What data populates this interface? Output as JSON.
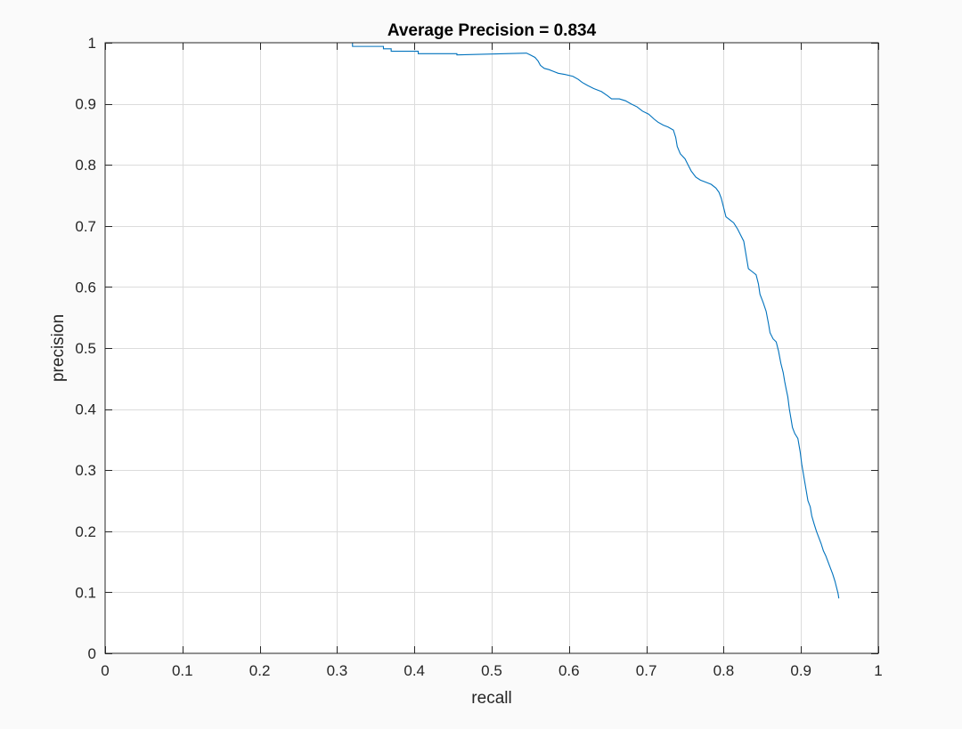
{
  "chart_data": {
    "type": "line",
    "title": "Average Precision = 0.834",
    "xlabel": "recall",
    "ylabel": "precision",
    "xlim": [
      0,
      1
    ],
    "ylim": [
      0,
      1
    ],
    "xticks": [
      "0",
      "0.1",
      "0.2",
      "0.3",
      "0.4",
      "0.5",
      "0.6",
      "0.7",
      "0.8",
      "0.9",
      "1"
    ],
    "yticks": [
      "0",
      "0.1",
      "0.2",
      "0.3",
      "0.4",
      "0.5",
      "0.6",
      "0.7",
      "0.8",
      "0.9",
      "1"
    ],
    "grid": true,
    "line_color": "#0072bd",
    "series": [
      {
        "points": [
          [
            0.0,
            1.0
          ],
          [
            0.32,
            1.0
          ],
          [
            0.32,
            0.994
          ],
          [
            0.36,
            0.994
          ],
          [
            0.36,
            0.99
          ],
          [
            0.37,
            0.99
          ],
          [
            0.37,
            0.986
          ],
          [
            0.405,
            0.986
          ],
          [
            0.405,
            0.982
          ],
          [
            0.455,
            0.982
          ],
          [
            0.455,
            0.98
          ],
          [
            0.545,
            0.983
          ],
          [
            0.55,
            0.98
          ],
          [
            0.556,
            0.976
          ],
          [
            0.56,
            0.97
          ],
          [
            0.563,
            0.963
          ],
          [
            0.568,
            0.958
          ],
          [
            0.574,
            0.956
          ],
          [
            0.58,
            0.953
          ],
          [
            0.586,
            0.95
          ],
          [
            0.595,
            0.948
          ],
          [
            0.605,
            0.945
          ],
          [
            0.612,
            0.94
          ],
          [
            0.617,
            0.935
          ],
          [
            0.624,
            0.93
          ],
          [
            0.632,
            0.925
          ],
          [
            0.642,
            0.92
          ],
          [
            0.65,
            0.913
          ],
          [
            0.655,
            0.908
          ],
          [
            0.665,
            0.908
          ],
          [
            0.673,
            0.905
          ],
          [
            0.68,
            0.9
          ],
          [
            0.688,
            0.895
          ],
          [
            0.695,
            0.888
          ],
          [
            0.703,
            0.883
          ],
          [
            0.71,
            0.875
          ],
          [
            0.715,
            0.87
          ],
          [
            0.722,
            0.865
          ],
          [
            0.728,
            0.862
          ],
          [
            0.735,
            0.857
          ],
          [
            0.738,
            0.845
          ],
          [
            0.74,
            0.83
          ],
          [
            0.744,
            0.818
          ],
          [
            0.75,
            0.81
          ],
          [
            0.754,
            0.8
          ],
          [
            0.758,
            0.79
          ],
          [
            0.764,
            0.78
          ],
          [
            0.77,
            0.775
          ],
          [
            0.776,
            0.772
          ],
          [
            0.784,
            0.768
          ],
          [
            0.79,
            0.762
          ],
          [
            0.794,
            0.755
          ],
          [
            0.797,
            0.745
          ],
          [
            0.8,
            0.73
          ],
          [
            0.803,
            0.715
          ],
          [
            0.808,
            0.71
          ],
          [
            0.813,
            0.705
          ],
          [
            0.818,
            0.695
          ],
          [
            0.822,
            0.685
          ],
          [
            0.826,
            0.675
          ],
          [
            0.828,
            0.66
          ],
          [
            0.83,
            0.645
          ],
          [
            0.832,
            0.63
          ],
          [
            0.837,
            0.625
          ],
          [
            0.842,
            0.62
          ],
          [
            0.845,
            0.605
          ],
          [
            0.847,
            0.588
          ],
          [
            0.851,
            0.575
          ],
          [
            0.855,
            0.56
          ],
          [
            0.858,
            0.54
          ],
          [
            0.86,
            0.525
          ],
          [
            0.864,
            0.515
          ],
          [
            0.868,
            0.51
          ],
          [
            0.871,
            0.495
          ],
          [
            0.874,
            0.475
          ],
          [
            0.877,
            0.46
          ],
          [
            0.879,
            0.445
          ],
          [
            0.881,
            0.432
          ],
          [
            0.883,
            0.42
          ],
          [
            0.885,
            0.4
          ],
          [
            0.887,
            0.385
          ],
          [
            0.889,
            0.37
          ],
          [
            0.892,
            0.36
          ],
          [
            0.896,
            0.352
          ],
          [
            0.899,
            0.33
          ],
          [
            0.901,
            0.31
          ],
          [
            0.903,
            0.295
          ],
          [
            0.905,
            0.28
          ],
          [
            0.907,
            0.265
          ],
          [
            0.909,
            0.25
          ],
          [
            0.912,
            0.24
          ],
          [
            0.914,
            0.225
          ],
          [
            0.917,
            0.212
          ],
          [
            0.92,
            0.2
          ],
          [
            0.923,
            0.19
          ],
          [
            0.926,
            0.18
          ],
          [
            0.929,
            0.168
          ],
          [
            0.932,
            0.16
          ],
          [
            0.935,
            0.15
          ],
          [
            0.938,
            0.14
          ],
          [
            0.941,
            0.13
          ],
          [
            0.944,
            0.118
          ],
          [
            0.946,
            0.108
          ],
          [
            0.948,
            0.098
          ],
          [
            0.949,
            0.09
          ]
        ]
      }
    ]
  }
}
